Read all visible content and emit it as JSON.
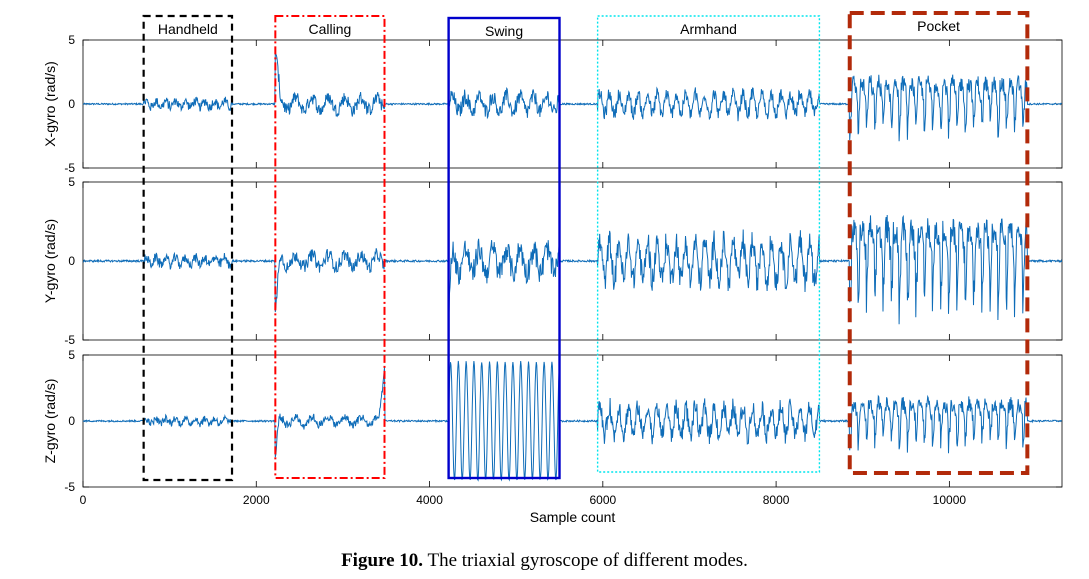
{
  "chart_data": {
    "type": "line",
    "xlabel": "Sample count",
    "xlim": [
      0,
      11300
    ],
    "xticks": [
      0,
      2000,
      4000,
      6000,
      8000,
      10000
    ],
    "panels": [
      {
        "ylabel": "X-gyro (rad/s)",
        "ylim": [
          -5,
          5
        ],
        "yticks": [
          -5,
          0,
          5
        ]
      },
      {
        "ylabel": "Y-gyro (rad/s)",
        "ylim": [
          -5,
          5
        ],
        "yticks": [
          -5,
          0,
          5
        ]
      },
      {
        "ylabel": "Z-gyro (rad/s)",
        "ylim": [
          -5,
          5
        ],
        "yticks": [
          -5,
          0,
          5
        ]
      }
    ],
    "modes": [
      {
        "label": "Handheld",
        "x_range": [
          700,
          1720
        ],
        "color": "#000000",
        "style": "dashed"
      },
      {
        "label": "Calling",
        "x_range": [
          2220,
          3480
        ],
        "color": "#ff0000",
        "style": "dashdot"
      },
      {
        "label": "Swing",
        "x_range": [
          4220,
          5500
        ],
        "color": "#0000cc",
        "style": "solid"
      },
      {
        "label": "Armhand",
        "x_range": [
          5940,
          8500
        ],
        "color": "#00e5ee",
        "style": "dotted"
      },
      {
        "label": "Pocket",
        "x_range": [
          8850,
          10900
        ],
        "color": "#b22a0a",
        "style": "heavy-dashed"
      }
    ],
    "series_color": "#0e6cb8",
    "segments": [
      {
        "mode": "Handheld",
        "x_range": [
          700,
          1720
        ],
        "x_amp": 0.7,
        "y_amp": 0.6,
        "z_amp": 0.5
      },
      {
        "mode": "Calling",
        "x_range": [
          2220,
          3480
        ],
        "x_amp": 1.0,
        "y_amp": 0.8,
        "z_amp": 0.6,
        "x_spike": 4.3,
        "z_spike": 4.2
      },
      {
        "mode": "Swing",
        "x_range": [
          4220,
          5500
        ],
        "x_amp": 1.2,
        "y_amp": 1.5,
        "z_amp": 4.5
      },
      {
        "mode": "Armhand",
        "x_range": [
          5940,
          8500
        ],
        "x_amp": 1.3,
        "y_amp": 2.0,
        "z_amp": 1.8
      },
      {
        "mode": "Pocket",
        "x_range": [
          8850,
          10900
        ],
        "x_amp": 2.7,
        "y_amp": 3.5,
        "z_amp": 2.2
      }
    ]
  },
  "caption": {
    "label": "Figure 10.",
    "text": " The triaxial gyroscope of different modes."
  }
}
